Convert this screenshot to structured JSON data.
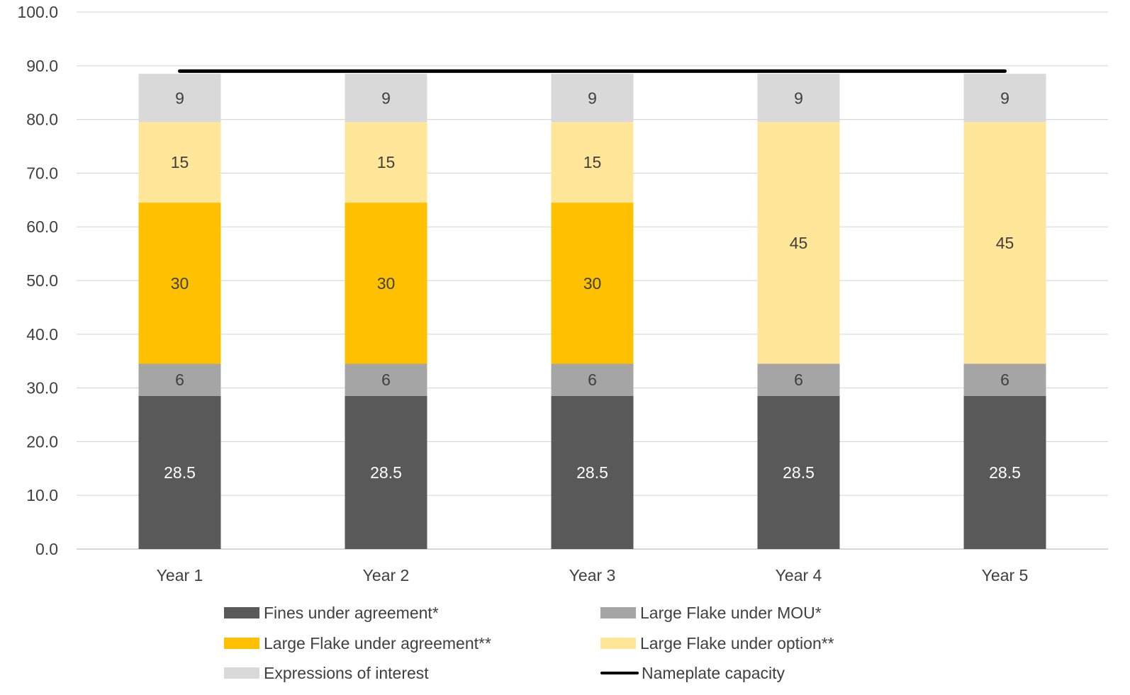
{
  "chart_data": {
    "type": "bar",
    "stacked": true,
    "categories": [
      "Year 1",
      "Year 2",
      "Year 3",
      "Year 4",
      "Year 5"
    ],
    "ylim": [
      0,
      100
    ],
    "yticks": [
      "0.0",
      "10.0",
      "20.0",
      "30.0",
      "40.0",
      "50.0",
      "60.0",
      "70.0",
      "80.0",
      "90.0",
      "100.0"
    ],
    "grid": true,
    "legend_position": "bottom",
    "series": [
      {
        "name": "Fines under agreement*",
        "color": "#595959",
        "label_color": "#ffffff",
        "values": [
          28.5,
          28.5,
          28.5,
          28.5,
          28.5
        ],
        "labels": [
          "28.5",
          "28.5",
          "28.5",
          "28.5",
          "28.5"
        ]
      },
      {
        "name": "Large Flake under MOU*",
        "color": "#a5a5a5",
        "label_color": "#404040",
        "values": [
          6,
          6,
          6,
          6,
          6
        ],
        "labels": [
          "6",
          "6",
          "6",
          "6",
          "6"
        ]
      },
      {
        "name": "Large Flake under agreement**",
        "color": "#ffc000",
        "label_color": "#404040",
        "values": [
          30,
          30,
          30,
          0,
          0
        ],
        "labels": [
          "30",
          "30",
          "30",
          "",
          ""
        ]
      },
      {
        "name": "Large Flake under option**",
        "color": "#ffe699",
        "label_color": "#404040",
        "values": [
          15,
          15,
          15,
          45,
          45
        ],
        "labels": [
          "15",
          "15",
          "15",
          "45",
          "45"
        ]
      },
      {
        "name": "Expressions of interest",
        "color": "#d9d9d9",
        "label_color": "#404040",
        "values": [
          9,
          9,
          9,
          9,
          9
        ],
        "labels": [
          "9",
          "9",
          "9",
          "9",
          "9"
        ]
      }
    ],
    "line_series": {
      "name": "Nameplate capacity",
      "color": "#000000",
      "value": 89
    }
  }
}
